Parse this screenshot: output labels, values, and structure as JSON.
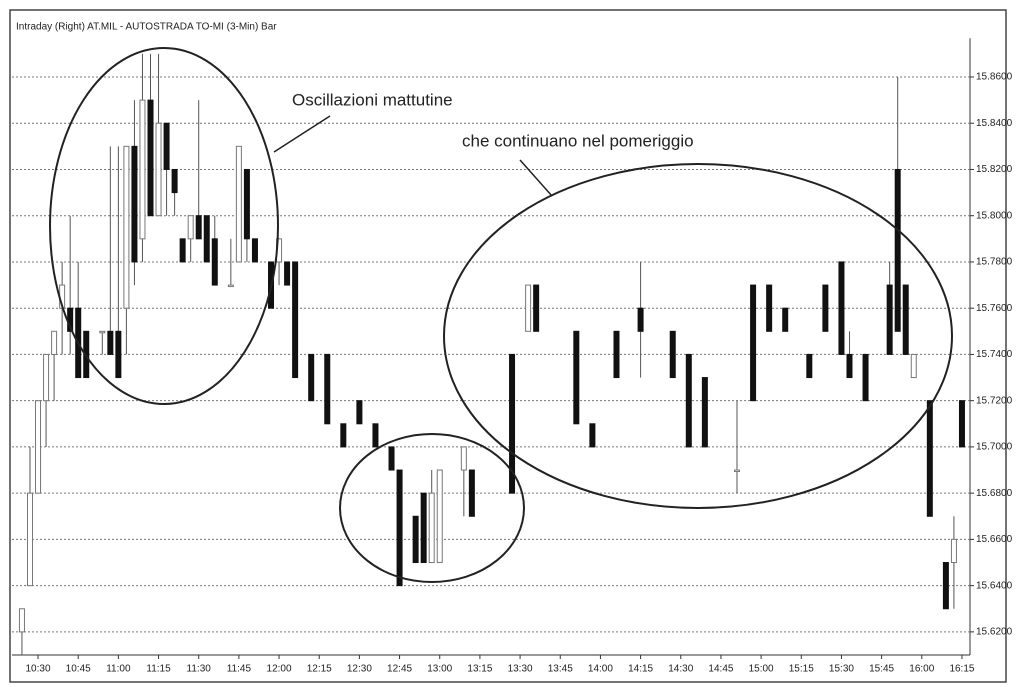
{
  "chart_data": {
    "type": "candlestick",
    "title": "Intraday (Right) AT.MIL - AUTOSTRADA TO-MI (3-Min) Bar",
    "annotations": [
      "Oscillazioni mattutine",
      "che continuano nel pomeriggio"
    ],
    "x": [
      "10:24",
      "10:27",
      "10:30",
      "10:33",
      "10:36",
      "10:39",
      "10:42",
      "10:45",
      "10:48",
      "10:54",
      "10:57",
      "11:00",
      "11:03",
      "11:06",
      "11:09",
      "11:12",
      "11:15",
      "11:18",
      "11:21",
      "11:24",
      "11:27",
      "11:30",
      "11:33",
      "11:36",
      "11:42",
      "11:45",
      "11:48",
      "11:51",
      "11:57",
      "12:00",
      "12:03",
      "12:06",
      "12:12",
      "12:18",
      "12:24",
      "12:30",
      "12:36",
      "12:42",
      "12:45",
      "12:51",
      "12:54",
      "12:57",
      "13:00",
      "13:09",
      "13:12",
      "13:27",
      "13:33",
      "13:36",
      "13:51",
      "13:57",
      "14:06",
      "14:15",
      "14:27",
      "14:33",
      "14:39",
      "14:51",
      "14:57",
      "15:03",
      "15:09",
      "15:18",
      "15:24",
      "15:30",
      "15:33",
      "15:39",
      "15:48",
      "15:51",
      "15:54",
      "15:57",
      "16:03",
      "16:09",
      "16:12",
      "16:15"
    ],
    "open": [
      15.62,
      15.64,
      15.68,
      15.72,
      15.74,
      15.76,
      15.76,
      15.76,
      15.75,
      15.75,
      15.75,
      15.75,
      15.76,
      15.83,
      15.79,
      15.85,
      15.8,
      15.84,
      15.82,
      15.79,
      15.79,
      15.8,
      15.8,
      15.79,
      15.77,
      15.78,
      15.82,
      15.79,
      15.78,
      15.78,
      15.78,
      15.78,
      15.74,
      15.74,
      15.71,
      15.72,
      15.71,
      15.7,
      15.69,
      15.67,
      15.68,
      15.65,
      15.65,
      15.69,
      15.69,
      15.74,
      15.75,
      15.77,
      15.75,
      15.71,
      15.75,
      15.76,
      15.75,
      15.74,
      15.73,
      15.69,
      15.77,
      15.77,
      15.76,
      15.74,
      15.77,
      15.78,
      15.74,
      15.74,
      15.77,
      15.82,
      15.77,
      15.73,
      15.72,
      15.65,
      15.65,
      15.72
    ],
    "high": [
      15.63,
      15.7,
      15.72,
      15.74,
      15.75,
      15.78,
      15.8,
      15.78,
      15.75,
      15.75,
      15.83,
      15.83,
      15.83,
      15.85,
      15.87,
      15.87,
      15.87,
      15.84,
      15.82,
      15.79,
      15.8,
      15.85,
      15.8,
      15.8,
      15.79,
      15.83,
      15.82,
      15.79,
      15.78,
      15.79,
      15.78,
      15.78,
      15.74,
      15.74,
      15.71,
      15.72,
      15.71,
      15.7,
      15.69,
      15.67,
      15.68,
      15.69,
      15.69,
      15.7,
      15.69,
      15.74,
      15.77,
      15.77,
      15.75,
      15.71,
      15.75,
      15.78,
      15.75,
      15.74,
      15.73,
      15.72,
      15.77,
      15.77,
      15.76,
      15.74,
      15.77,
      15.78,
      15.75,
      15.74,
      15.78,
      15.86,
      15.77,
      15.74,
      15.72,
      15.65,
      15.67,
      15.72
    ],
    "low": [
      15.61,
      15.64,
      15.68,
      15.7,
      15.72,
      15.74,
      15.74,
      15.73,
      15.73,
      15.74,
      15.74,
      15.73,
      15.74,
      15.77,
      15.78,
      15.8,
      15.8,
      15.8,
      15.8,
      15.78,
      15.78,
      15.79,
      15.78,
      15.77,
      15.77,
      15.78,
      15.78,
      15.78,
      15.76,
      15.77,
      15.77,
      15.73,
      15.72,
      15.71,
      15.7,
      15.71,
      15.7,
      15.69,
      15.64,
      15.65,
      15.65,
      15.65,
      15.65,
      15.67,
      15.67,
      15.68,
      15.75,
      15.75,
      15.71,
      15.7,
      15.73,
      15.73,
      15.73,
      15.7,
      15.7,
      15.68,
      15.72,
      15.75,
      15.75,
      15.73,
      15.75,
      15.74,
      15.73,
      15.72,
      15.74,
      15.75,
      15.74,
      15.73,
      15.67,
      15.63,
      15.63,
      15.7
    ],
    "close": [
      15.63,
      15.68,
      15.72,
      15.74,
      15.75,
      15.77,
      15.75,
      15.73,
      15.73,
      15.75,
      15.74,
      15.73,
      15.83,
      15.78,
      15.85,
      15.8,
      15.84,
      15.82,
      15.81,
      15.78,
      15.8,
      15.79,
      15.78,
      15.77,
      15.77,
      15.83,
      15.79,
      15.78,
      15.76,
      15.79,
      15.77,
      15.73,
      15.72,
      15.71,
      15.7,
      15.71,
      15.7,
      15.69,
      15.64,
      15.65,
      15.65,
      15.68,
      15.69,
      15.7,
      15.67,
      15.68,
      15.77,
      15.75,
      15.71,
      15.7,
      15.73,
      15.75,
      15.73,
      15.7,
      15.7,
      15.69,
      15.72,
      15.75,
      15.75,
      15.73,
      15.75,
      15.74,
      15.73,
      15.72,
      15.74,
      15.75,
      15.74,
      15.74,
      15.67,
      15.63,
      15.66,
      15.7
    ],
    "xlim": [
      "10:22",
      "16:18"
    ],
    "xticks": [
      "10:30",
      "10:45",
      "11:00",
      "11:15",
      "11:30",
      "11:45",
      "12:00",
      "12:15",
      "12:30",
      "12:45",
      "13:00",
      "13:15",
      "13:30",
      "13:45",
      "14:00",
      "14:15",
      "14:30",
      "14:45",
      "15:00",
      "15:15",
      "15:30",
      "15:45",
      "16:00",
      "16:15"
    ],
    "ylim": [
      15.61,
      15.875
    ],
    "yticks": [
      {
        "value": 15.62,
        "label": "15.6200"
      },
      {
        "value": 15.64,
        "label": "15.6400"
      },
      {
        "value": 15.66,
        "label": "15.6600"
      },
      {
        "value": 15.68,
        "label": "15.6800"
      },
      {
        "value": 15.7,
        "label": "15.7000"
      },
      {
        "value": 15.72,
        "label": "15.7200"
      },
      {
        "value": 15.74,
        "label": "15.7400"
      },
      {
        "value": 15.76,
        "label": "15.7600"
      },
      {
        "value": 15.78,
        "label": "15.7800"
      },
      {
        "value": 15.8,
        "label": "15.8000"
      },
      {
        "value": 15.82,
        "label": "15.8200"
      },
      {
        "value": 15.84,
        "label": "15.8400"
      },
      {
        "value": 15.86,
        "label": "15.8600"
      }
    ],
    "grid": true
  }
}
